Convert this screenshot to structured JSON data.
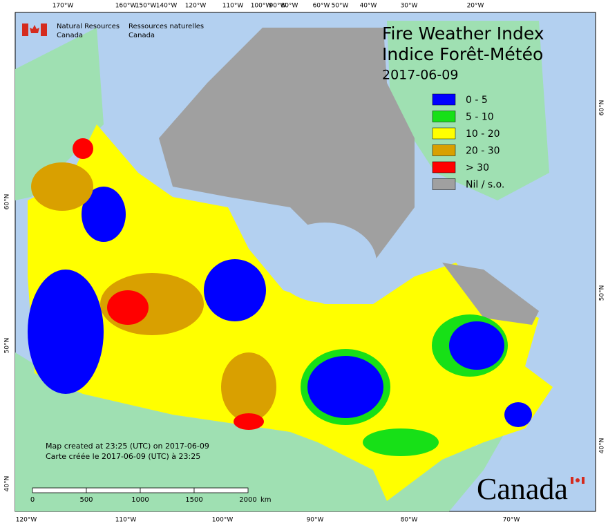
{
  "header": {
    "agency_en": "Natural Resources",
    "agency_en2": "Canada",
    "agency_fr": "Ressources naturelles",
    "agency_fr2": "Canada"
  },
  "title": {
    "en": "Fire Weather Index",
    "fr": "Indice Forêt-Météo",
    "date": "2017-06-09"
  },
  "legend": [
    {
      "label": "0 - 5",
      "color": "#0000ff"
    },
    {
      "label": "5 - 10",
      "color": "#17e017"
    },
    {
      "label": "10 - 20",
      "color": "#ffff00"
    },
    {
      "label": "20 - 30",
      "color": "#d9a000"
    },
    {
      "label": "> 30",
      "color": "#ff0000"
    },
    {
      "label": "Nil / s.o.",
      "color": "#a0a0a0"
    }
  ],
  "graticule": {
    "top": [
      "170°W",
      "160°W",
      "150°W",
      "140°W",
      "120°W",
      "110°W",
      "100°W",
      "90°W",
      "80°W",
      "60°W",
      "50°W",
      "40°W",
      "30°W",
      "20°W"
    ],
    "bottom": [
      "120°W",
      "110°W",
      "100°W",
      "90°W",
      "80°W",
      "70°W"
    ],
    "left": [
      "60°N",
      "50°N",
      "40°N"
    ],
    "right": [
      "60°N",
      "50°N",
      "40°N"
    ]
  },
  "notes": {
    "en": "Map created at 23:25 (UTC) on 2017-06-09",
    "fr": "Carte créée le 2017-06-09 (UTC) à 23:25"
  },
  "scale": {
    "labels": [
      "0",
      "500",
      "1000",
      "1500",
      "2000"
    ],
    "unit": "km"
  },
  "wordmark": "Canada"
}
